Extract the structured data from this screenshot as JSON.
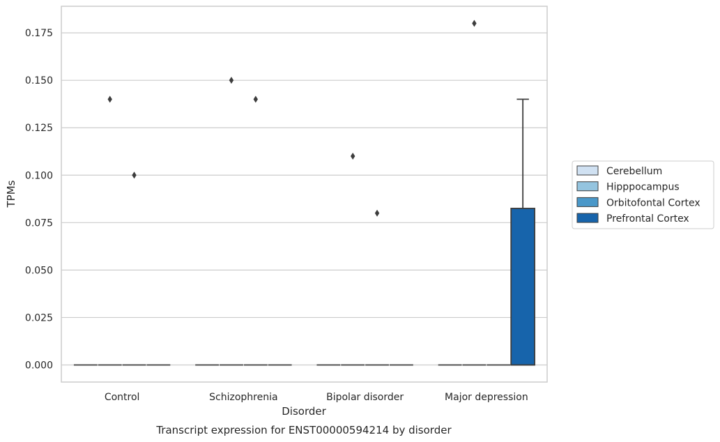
{
  "chart_data": {
    "type": "box",
    "title": "Transcript expression for ENST00000594214 by disorder",
    "xlabel": "Disorder",
    "ylabel": "TPMs",
    "categories": [
      "Control",
      "Schizophrenia",
      "Bipolar disorder",
      "Major depression"
    ],
    "ylim": [
      -0.009,
      0.189
    ],
    "yticks": [
      0.0,
      0.025,
      0.05,
      0.075,
      0.1,
      0.125,
      0.15,
      0.175
    ],
    "ytick_labels": [
      "0.000",
      "0.025",
      "0.050",
      "0.075",
      "0.100",
      "0.125",
      "0.150",
      "0.175"
    ],
    "grid": "horizontal",
    "legend_placement": "right",
    "series": [
      {
        "name": "Cerebellum",
        "color": "#d0e1f2",
        "boxes": [
          {
            "q1": 0,
            "median": 0,
            "q3": 0,
            "whisker_low": 0,
            "whisker_high": 0,
            "outliers": []
          },
          {
            "q1": 0,
            "median": 0,
            "q3": 0,
            "whisker_low": 0,
            "whisker_high": 0,
            "outliers": []
          },
          {
            "q1": 0,
            "median": 0,
            "q3": 0,
            "whisker_low": 0,
            "whisker_high": 0,
            "outliers": []
          },
          {
            "q1": 0,
            "median": 0,
            "q3": 0,
            "whisker_low": 0,
            "whisker_high": 0,
            "outliers": []
          }
        ]
      },
      {
        "name": "Hipppocampus",
        "color": "#94c4df",
        "boxes": [
          {
            "q1": 0,
            "median": 0,
            "q3": 0,
            "whisker_low": 0,
            "whisker_high": 0,
            "outliers": [
              0.14
            ]
          },
          {
            "q1": 0,
            "median": 0,
            "q3": 0,
            "whisker_low": 0,
            "whisker_high": 0,
            "outliers": [
              0.15
            ]
          },
          {
            "q1": 0,
            "median": 0,
            "q3": 0,
            "whisker_low": 0,
            "whisker_high": 0,
            "outliers": [
              0.11
            ]
          },
          {
            "q1": 0,
            "median": 0,
            "q3": 0,
            "whisker_low": 0,
            "whisker_high": 0,
            "outliers": [
              0.18
            ]
          }
        ]
      },
      {
        "name": "Orbitofontal Cortex",
        "color": "#4a98c9",
        "boxes": [
          {
            "q1": 0,
            "median": 0,
            "q3": 0,
            "whisker_low": 0,
            "whisker_high": 0,
            "outliers": [
              0.1
            ]
          },
          {
            "q1": 0,
            "median": 0,
            "q3": 0,
            "whisker_low": 0,
            "whisker_high": 0,
            "outliers": [
              0.14
            ]
          },
          {
            "q1": 0,
            "median": 0,
            "q3": 0,
            "whisker_low": 0,
            "whisker_high": 0,
            "outliers": [
              0.08
            ]
          },
          {
            "q1": 0,
            "median": 0,
            "q3": 0,
            "whisker_low": 0,
            "whisker_high": 0,
            "outliers": []
          }
        ]
      },
      {
        "name": "Prefrontal Cortex",
        "color": "#1764ab",
        "boxes": [
          {
            "q1": 0,
            "median": 0,
            "q3": 0,
            "whisker_low": 0,
            "whisker_high": 0,
            "outliers": []
          },
          {
            "q1": 0,
            "median": 0,
            "q3": 0,
            "whisker_low": 0,
            "whisker_high": 0,
            "outliers": []
          },
          {
            "q1": 0,
            "median": 0,
            "q3": 0,
            "whisker_low": 0,
            "whisker_high": 0,
            "outliers": []
          },
          {
            "q1": 0,
            "median": 0,
            "q3": 0.0825,
            "whisker_low": 0,
            "whisker_high": 0.14,
            "outliers": []
          }
        ]
      }
    ],
    "colors": {
      "grid": "#cccccc",
      "frame": "#cccccc",
      "box_edge": "#3d3d3d",
      "outlier": "#3d3d3d"
    }
  }
}
